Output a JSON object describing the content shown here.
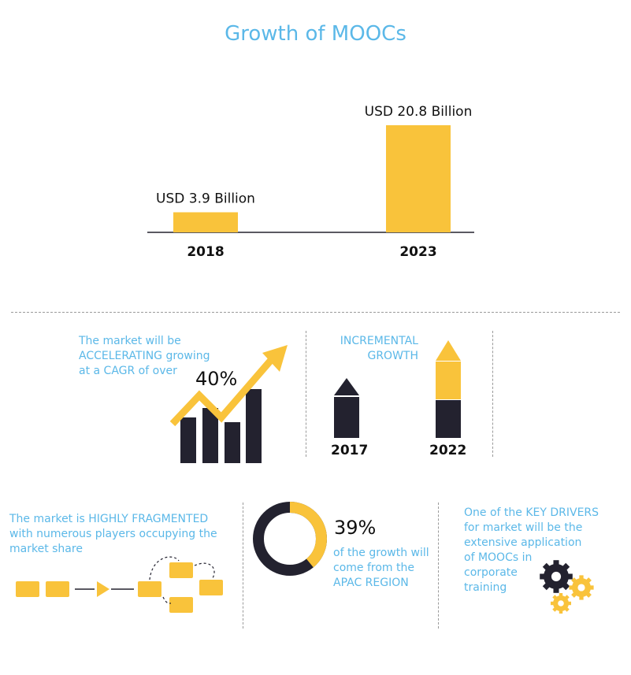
{
  "title": "Growth of MOOCs",
  "chart_data": {
    "type": "bar",
    "categories": [
      "2018",
      "2023"
    ],
    "values": [
      3.9,
      20.8
    ],
    "data_labels": [
      "USD 3.9 Billion",
      "USD 20.8 Billion"
    ],
    "ylim": [
      0,
      20.8
    ],
    "bar_color": "#f9c33b"
  },
  "cagr": {
    "text_lines": [
      "The market will be",
      "ACCELERATING growing",
      "at a CAGR of over"
    ],
    "value": "40%"
  },
  "incremental": {
    "label_lines": [
      "INCREMENTAL",
      "GROWTH"
    ],
    "years": [
      "2017",
      "2022"
    ]
  },
  "fragmented": {
    "text_lines": [
      "The market is HIGHLY FRAGMENTED",
      "with numerous players occupying the",
      "market share"
    ]
  },
  "apac": {
    "value": "39%",
    "share": 0.39,
    "text_lines": [
      "of the growth will",
      "come from the",
      "APAC REGION"
    ]
  },
  "drivers": {
    "text_lines": [
      "One of the KEY DRIVERS",
      "for market will be the",
      "extensive application",
      "of MOOCs in",
      "corporate",
      "training"
    ]
  },
  "colors": {
    "yellow": "#f9c33b",
    "navy": "#23222f",
    "blue": "#5bb8e8"
  },
  "icons": [
    "trend-arrow-icon",
    "pencil-icon",
    "stack-icon",
    "donut-icon",
    "gears-icon"
  ]
}
